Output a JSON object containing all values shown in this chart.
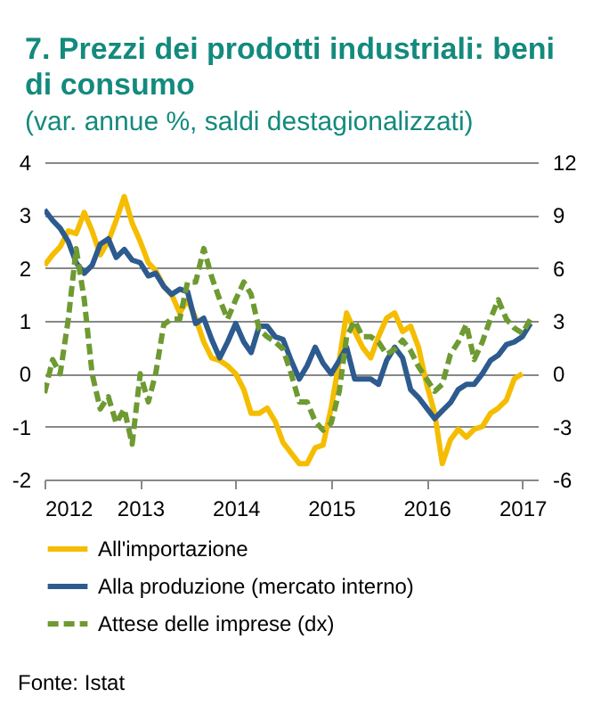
{
  "chart_data": {
    "type": "line",
    "title": "7. Prezzi dei prodotti industriali: beni di consumo",
    "subtitle": "(var. annue %, saldi destagionalizzati)",
    "y2label": null,
    "x": [
      "2012-01",
      "2012-02",
      "2012-03",
      "2012-04",
      "2012-05",
      "2012-06",
      "2012-07",
      "2012-08",
      "2012-09",
      "2012-10",
      "2012-11",
      "2012-12",
      "2013-01",
      "2013-02",
      "2013-03",
      "2013-04",
      "2013-05",
      "2013-06",
      "2013-07",
      "2013-08",
      "2013-09",
      "2013-10",
      "2013-11",
      "2013-12",
      "2014-01",
      "2014-02",
      "2014-03",
      "2014-04",
      "2014-05",
      "2014-06",
      "2014-07",
      "2014-08",
      "2014-09",
      "2014-10",
      "2014-11",
      "2014-12",
      "2015-01",
      "2015-02",
      "2015-03",
      "2015-04",
      "2015-05",
      "2015-06",
      "2015-07",
      "2015-08",
      "2015-09",
      "2015-10",
      "2015-11",
      "2015-12",
      "2016-01",
      "2016-02",
      "2016-03",
      "2016-04",
      "2016-05",
      "2016-06",
      "2016-07",
      "2016-08",
      "2016-09",
      "2016-10",
      "2016-11",
      "2016-12",
      "2017-01",
      "2017-02"
    ],
    "series": [
      {
        "name": "All'importazione",
        "color": "#f5bd00",
        "values": [
          2.05,
          2.25,
          2.4,
          2.7,
          2.65,
          3.05,
          2.7,
          2.25,
          2.5,
          2.9,
          3.35,
          2.85,
          2.5,
          2.1,
          1.95,
          1.65,
          1.5,
          1.15,
          1.4,
          1.05,
          0.6,
          0.3,
          0.25,
          0.15,
          0,
          -0.3,
          -0.75,
          -0.75,
          -0.65,
          -0.9,
          -1.3,
          -1.5,
          -1.7,
          -1.7,
          -1.4,
          -1.35,
          -0.65,
          0.25,
          1.15,
          0.8,
          0.5,
          0.3,
          0.7,
          1.05,
          1.15,
          0.8,
          0.9,
          0.5,
          -0.2,
          -0.75,
          -1.7,
          -1.25,
          -1.05,
          -1.2,
          -1.05,
          -1,
          -0.75,
          -0.65,
          -0.5,
          -0.1,
          0,
          null
        ]
      },
      {
        "name": "Alla produzione (mercato interno)",
        "color": "#2d5b8f",
        "values": [
          3.1,
          2.9,
          2.75,
          2.5,
          2.1,
          1.9,
          2.05,
          2.45,
          2.55,
          2.2,
          2.35,
          2.15,
          2.1,
          1.85,
          1.9,
          1.65,
          1.5,
          1.6,
          1.55,
          0.95,
          1.05,
          0.65,
          0.3,
          0.6,
          0.95,
          0.6,
          0.4,
          0.9,
          0.9,
          0.7,
          0.65,
          0.25,
          -0.1,
          0.15,
          0.5,
          0.2,
          0,
          0.25,
          0.5,
          -0.1,
          -0.1,
          -0.1,
          -0.2,
          0.25,
          0.5,
          0.3,
          -0.3,
          -0.45,
          -0.65,
          -0.85,
          -0.7,
          -0.55,
          -0.3,
          -0.2,
          -0.2,
          0,
          0.25,
          0.35,
          0.55,
          0.6,
          0.7,
          0.95
        ]
      },
      {
        "name": "Attese delle imprese (dx)",
        "color": "#6e9a32",
        "axis": "y2",
        "line_style": "dashed",
        "values": [
          -1.1,
          0.8,
          0,
          3.1,
          7.1,
          4.2,
          0,
          -2,
          -1.3,
          -2.8,
          -2,
          -4,
          0,
          -1.6,
          0,
          2.8,
          3.1,
          3.1,
          5.2,
          5.2,
          7.1,
          5.5,
          4.2,
          3.1,
          4.2,
          5.2,
          4.5,
          2.5,
          2.1,
          1.8,
          1.4,
          0,
          -1.6,
          -1.6,
          -2.7,
          -3.2,
          -2.8,
          -1,
          2.1,
          3,
          2.1,
          2.1,
          1.8,
          1.1,
          1.4,
          1.9,
          1.3,
          0.4,
          -0.3,
          -1,
          -0.6,
          1.1,
          1.8,
          2.8,
          0.8,
          1.8,
          3.1,
          4.2,
          3.1,
          2.6,
          2.3,
          3.1
        ]
      }
    ],
    "xlim": [
      "2012-01",
      "2017-03"
    ],
    "xticks": [
      "2012",
      "2013",
      "2014",
      "2015",
      "2016",
      "2017"
    ],
    "ylim": [
      -2,
      4
    ],
    "yticks": [
      -2,
      -1,
      0,
      1,
      2,
      3,
      4
    ],
    "y2lim": [
      -6,
      12
    ],
    "y2ticks": [
      -6,
      -3,
      0,
      3,
      6,
      9,
      12
    ],
    "grid": "y",
    "legend": "bottom",
    "line_style": "solid",
    "annotations": [
      "Fonte: Istat"
    ]
  }
}
